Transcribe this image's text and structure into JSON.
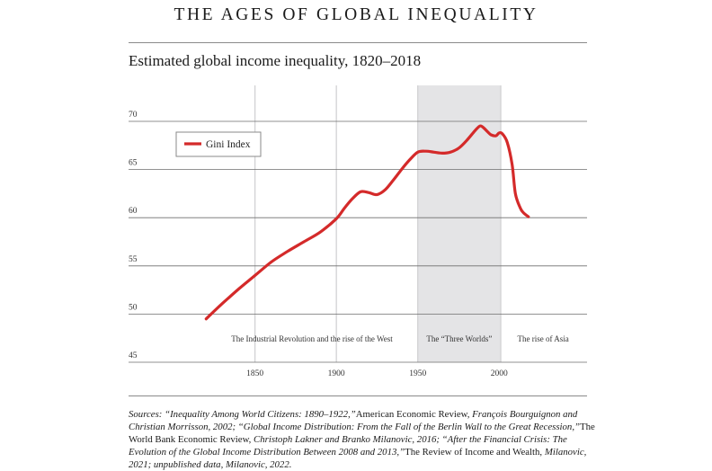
{
  "header": {
    "title": "THE AGES OF GLOBAL INEQUALITY",
    "subtitle": "Estimated global income inequality, 1820–2018"
  },
  "chart_data": {
    "type": "line",
    "title": "Estimated global income inequality, 1820–2018",
    "xlabel": "",
    "ylabel": "",
    "xlim": [
      1790,
      2054
    ],
    "ylim": [
      45,
      70
    ],
    "x_ticks": [
      "1850",
      "1900",
      "1950",
      "2000"
    ],
    "y_ticks": [
      "45",
      "50",
      "55",
      "60",
      "65",
      "70"
    ],
    "grid": "horizontal",
    "legend": {
      "position": "top-left",
      "entries": [
        "Gini Index"
      ]
    },
    "color": "#d42a2a",
    "series": [
      {
        "name": "Gini Index",
        "x": [
          1820,
          1830,
          1840,
          1850,
          1860,
          1870,
          1880,
          1890,
          1900,
          1905,
          1910,
          1915,
          1920,
          1925,
          1930,
          1935,
          1940,
          1945,
          1950,
          1955,
          1960,
          1965,
          1970,
          1975,
          1980,
          1985,
          1988,
          1990,
          1993,
          1995,
          1998,
          2000,
          2002,
          2005,
          2008,
          2010,
          2013,
          2015,
          2018
        ],
        "values": [
          49.5,
          51.1,
          52.6,
          54.0,
          55.4,
          56.5,
          57.5,
          58.5,
          59.9,
          61.0,
          62.0,
          62.7,
          62.6,
          62.4,
          62.9,
          63.9,
          65.0,
          66.0,
          66.8,
          66.9,
          66.8,
          66.7,
          66.8,
          67.2,
          68.0,
          69.0,
          69.5,
          69.4,
          68.9,
          68.6,
          68.5,
          68.8,
          68.7,
          67.8,
          65.5,
          62.5,
          61.0,
          60.5,
          60.1
        ]
      }
    ],
    "shaded_regions": [
      {
        "start": 1950,
        "end": 2001,
        "label": "The “Three Worlds”"
      }
    ],
    "era_lines": [
      1850,
      1900,
      1950,
      2001
    ],
    "annotations": [
      {
        "text": "The Industrial Revolution and the rise of the West",
        "x": 1885
      },
      {
        "text": "The “Three Worlds”",
        "x": 1975.5
      },
      {
        "text": "The rise of Asia",
        "x": 2027
      }
    ]
  },
  "sources": {
    "segments": [
      {
        "t": "Sources: “Inequality Among World Citizens: 1890–1922,”",
        "i": true
      },
      {
        "t": "American Economic Review,",
        "i": false
      },
      {
        "t": " François Bourguignon and Christian Morrisson, 2002; “Global Income Distribution: From the Fall of the Berlin Wall to the Great Recession,”",
        "i": true
      },
      {
        "t": "The World Bank Economic Review,",
        "i": false
      },
      {
        "t": " Christoph Lakner and Branko Milanovic, 2016; “After the Financial Crisis: The Evolution of the Global Income Distribution Between 2008 and 2013,”",
        "i": true
      },
      {
        "t": "The Review of Income and Wealth,",
        "i": false
      },
      {
        "t": " Milanovic, 2021; unpublished data, Milanovic, 2022.",
        "i": true
      }
    ]
  }
}
